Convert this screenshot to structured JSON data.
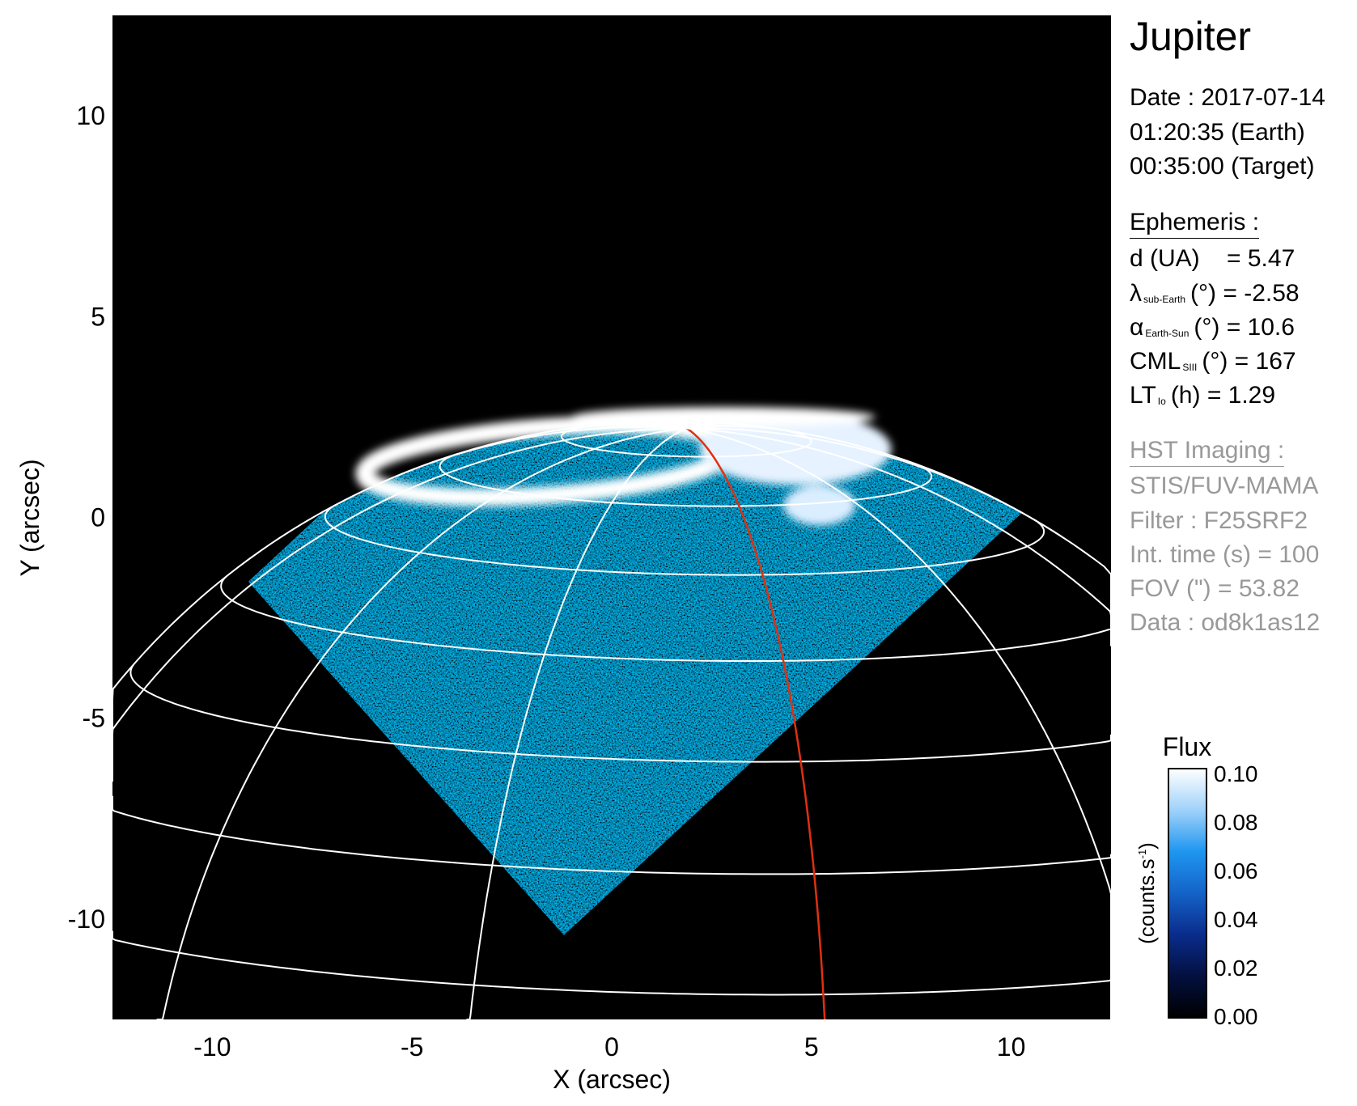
{
  "chart_data": {
    "type": "heatmap",
    "title": "",
    "xlabel": "X (arcsec)",
    "ylabel": "Y (arcsec)",
    "xlim": [
      -12.5,
      12.5
    ],
    "ylim": [
      -12.5,
      12.5
    ],
    "xticks": [
      "-10",
      "-5",
      "0",
      "5",
      "10"
    ],
    "yticks": [
      "10",
      "5",
      "0",
      "-5",
      "-10"
    ],
    "xtick_values": [
      -10,
      -5,
      0,
      5,
      10
    ],
    "ytick_values": [
      10,
      5,
      0,
      -5,
      -10
    ],
    "grid": "planetographic latitude/longitude grid (white)",
    "highlighted_meridian_color": "#e03010",
    "background_color": "#000000",
    "colorbar": {
      "title": "Flux",
      "unit_label": "(counts.s",
      "unit_exp": "-1",
      "unit_close": ")",
      "range": [
        0.0,
        0.1
      ],
      "ticks": [
        "0.10",
        "0.08",
        "0.06",
        "0.04",
        "0.02",
        "0.00"
      ],
      "tick_values": [
        0.1,
        0.08,
        0.06,
        0.04,
        0.02,
        0.0
      ],
      "colors": [
        "#000000",
        "#03103f",
        "#0a2c8c",
        "#1463c8",
        "#1e96f0",
        "#9fd2fa",
        "#ffffff"
      ]
    }
  },
  "info": {
    "target": "Jupiter",
    "date": "Date : 2017-07-14",
    "earth_time": "01:20:35 (Earth)",
    "target_time": "00:35:00 (Target)",
    "ephemeris_heading": "Ephemeris :",
    "distance": "d (UA)    = 5.47",
    "lat_sym": "λ",
    "lat_sub": "sub-Earth",
    "lat_rest": "(°) = -2.58",
    "phase_sym": "α",
    "phase_sub": "Earth-Sun",
    "phase_rest": "(°) = 10.6",
    "cml_sym": "CML",
    "cml_sub": "SIII",
    "cml_rest": "(°) = 167",
    "lt_sym": "LT",
    "lt_sub": "Io",
    "lt_rest": "(h) = 1.29",
    "hst_heading": "HST Imaging :",
    "instrument": "STIS/FUV-MAMA",
    "filter": "Filter : F25SRF2",
    "int_time": "Int. time (s) = 100",
    "fov": "FOV (\") = 53.82",
    "dataset": "Data : od8k1as12"
  }
}
